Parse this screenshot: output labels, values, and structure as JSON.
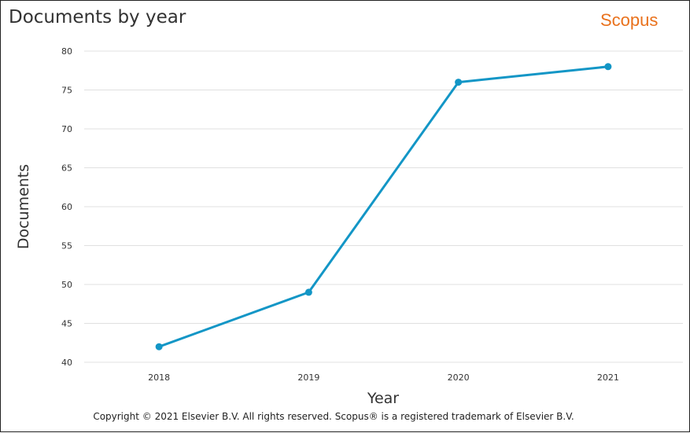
{
  "header": {
    "title": "Documents by year",
    "logo_text": "Scopus"
  },
  "footer": {
    "copyright": "Copyright © 2021 Elsevier B.V. All rights reserved. Scopus® is a registered trademark of Elsevier B.V."
  },
  "colors": {
    "line": "#1396c6",
    "logo": "#e9711c",
    "grid": "#e0e0e0"
  },
  "chart_data": {
    "type": "line",
    "title": "Documents by year",
    "xlabel": "Year",
    "ylabel": "Documents",
    "categories": [
      "2018",
      "2019",
      "2020",
      "2021"
    ],
    "values": [
      42,
      49,
      76,
      78
    ],
    "ylim": [
      40,
      80
    ],
    "yticks": [
      40,
      45,
      50,
      55,
      60,
      65,
      70,
      75,
      80
    ],
    "grid": true,
    "legend": "none"
  }
}
